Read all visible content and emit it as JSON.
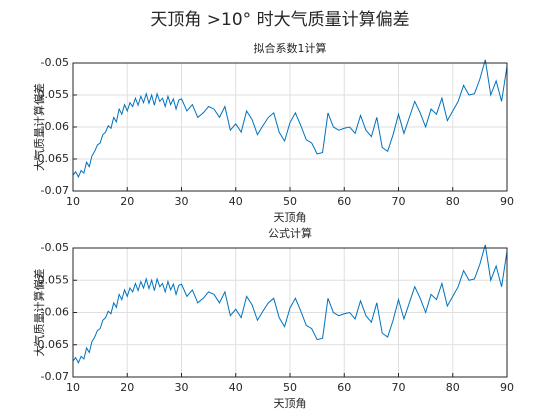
{
  "title": "天顶角 >10° 时大气质量计算偏差",
  "chart_data": [
    {
      "type": "line",
      "title": "拟合系数1计算",
      "xlabel": "天顶角",
      "ylabel": "大气质量计算偏差",
      "color": "#0072bd",
      "grid": true,
      "xlim": [
        10,
        90
      ],
      "xticks": [
        10,
        20,
        30,
        40,
        50,
        60,
        70,
        80,
        90
      ],
      "ylim": [
        -0.07,
        -0.05
      ],
      "yticks": [
        -0.05,
        -0.055,
        -0.06,
        -0.065,
        -0.07
      ],
      "x": [
        10,
        10.5,
        11,
        11.5,
        12,
        12.5,
        13,
        13.5,
        14,
        14.5,
        15,
        15.5,
        16,
        16.5,
        17,
        17.5,
        18,
        18.5,
        19,
        19.5,
        20,
        20.5,
        21,
        21.5,
        22,
        22.5,
        23,
        23.5,
        24,
        24.5,
        25,
        25.5,
        26,
        26.5,
        27,
        27.5,
        28,
        28.5,
        29,
        29.5,
        30,
        31,
        32,
        33,
        34,
        35,
        36,
        37,
        38,
        39,
        40,
        41,
        42,
        43,
        44,
        45,
        46,
        47,
        48,
        49,
        50,
        51,
        52,
        53,
        54,
        55,
        56,
        57,
        58,
        59,
        60,
        61,
        62,
        63,
        64,
        65,
        66,
        67,
        68,
        69,
        70,
        71,
        72,
        73,
        74,
        75,
        76,
        77,
        78,
        79,
        80,
        81,
        82,
        83,
        84,
        85,
        86,
        87,
        88,
        89,
        90
      ],
      "values": [
        -0.0675,
        -0.067,
        -0.0678,
        -0.0668,
        -0.0672,
        -0.0655,
        -0.0662,
        -0.0645,
        -0.0638,
        -0.0628,
        -0.0625,
        -0.0612,
        -0.0608,
        -0.0598,
        -0.0602,
        -0.0585,
        -0.0592,
        -0.0572,
        -0.058,
        -0.0565,
        -0.0575,
        -0.0562,
        -0.0568,
        -0.0555,
        -0.0566,
        -0.0552,
        -0.0562,
        -0.0548,
        -0.0563,
        -0.055,
        -0.0566,
        -0.0548,
        -0.056,
        -0.0555,
        -0.0568,
        -0.0552,
        -0.0565,
        -0.0556,
        -0.0572,
        -0.0558,
        -0.0556,
        -0.0575,
        -0.0565,
        -0.0585,
        -0.0578,
        -0.0568,
        -0.0572,
        -0.0585,
        -0.0568,
        -0.0605,
        -0.0595,
        -0.0608,
        -0.0575,
        -0.0588,
        -0.0612,
        -0.0598,
        -0.0585,
        -0.0578,
        -0.0608,
        -0.0622,
        -0.0593,
        -0.0578,
        -0.0598,
        -0.062,
        -0.0625,
        -0.0642,
        -0.064,
        -0.0578,
        -0.06,
        -0.0605,
        -0.0602,
        -0.06,
        -0.061,
        -0.0582,
        -0.0605,
        -0.0615,
        -0.0585,
        -0.0632,
        -0.0638,
        -0.0612,
        -0.058,
        -0.061,
        -0.0585,
        -0.056,
        -0.0578,
        -0.06,
        -0.0572,
        -0.058,
        -0.0555,
        -0.059,
        -0.0575,
        -0.056,
        -0.0535,
        -0.055,
        -0.0548,
        -0.0525,
        -0.0495,
        -0.055,
        -0.0528,
        -0.056,
        -0.0505
      ]
    },
    {
      "type": "line",
      "title": "公式计算",
      "xlabel": "天顶角",
      "ylabel": "大气质量计算偏差",
      "color": "#0072bd",
      "grid": true,
      "xlim": [
        10,
        90
      ],
      "xticks": [
        10,
        20,
        30,
        40,
        50,
        60,
        70,
        80,
        90
      ],
      "ylim": [
        -0.07,
        -0.05
      ],
      "yticks": [
        -0.05,
        -0.055,
        -0.06,
        -0.065,
        -0.07
      ],
      "x": [
        10,
        10.5,
        11,
        11.5,
        12,
        12.5,
        13,
        13.5,
        14,
        14.5,
        15,
        15.5,
        16,
        16.5,
        17,
        17.5,
        18,
        18.5,
        19,
        19.5,
        20,
        20.5,
        21,
        21.5,
        22,
        22.5,
        23,
        23.5,
        24,
        24.5,
        25,
        25.5,
        26,
        26.5,
        27,
        27.5,
        28,
        28.5,
        29,
        29.5,
        30,
        31,
        32,
        33,
        34,
        35,
        36,
        37,
        38,
        39,
        40,
        41,
        42,
        43,
        44,
        45,
        46,
        47,
        48,
        49,
        50,
        51,
        52,
        53,
        54,
        55,
        56,
        57,
        58,
        59,
        60,
        61,
        62,
        63,
        64,
        65,
        66,
        67,
        68,
        69,
        70,
        71,
        72,
        73,
        74,
        75,
        76,
        77,
        78,
        79,
        80,
        81,
        82,
        83,
        84,
        85,
        86,
        87,
        88,
        89,
        90
      ],
      "values": [
        -0.0675,
        -0.067,
        -0.0678,
        -0.0668,
        -0.0672,
        -0.0655,
        -0.0662,
        -0.0645,
        -0.0638,
        -0.0628,
        -0.0625,
        -0.0612,
        -0.0608,
        -0.0598,
        -0.0602,
        -0.0585,
        -0.0592,
        -0.0572,
        -0.058,
        -0.0565,
        -0.0575,
        -0.0562,
        -0.0568,
        -0.0555,
        -0.0566,
        -0.0552,
        -0.0562,
        -0.0548,
        -0.0563,
        -0.055,
        -0.0566,
        -0.0548,
        -0.056,
        -0.0555,
        -0.0568,
        -0.0552,
        -0.0565,
        -0.0556,
        -0.0572,
        -0.0558,
        -0.0556,
        -0.0575,
        -0.0565,
        -0.0585,
        -0.0578,
        -0.0568,
        -0.0572,
        -0.0585,
        -0.0568,
        -0.0605,
        -0.0595,
        -0.0608,
        -0.0575,
        -0.0588,
        -0.0612,
        -0.0598,
        -0.0585,
        -0.0578,
        -0.0608,
        -0.0622,
        -0.0593,
        -0.0578,
        -0.0598,
        -0.062,
        -0.0625,
        -0.0642,
        -0.064,
        -0.0578,
        -0.06,
        -0.0605,
        -0.0602,
        -0.06,
        -0.061,
        -0.0582,
        -0.0605,
        -0.0615,
        -0.0585,
        -0.0632,
        -0.0638,
        -0.0612,
        -0.058,
        -0.061,
        -0.0585,
        -0.056,
        -0.0578,
        -0.06,
        -0.0572,
        -0.058,
        -0.0555,
        -0.059,
        -0.0575,
        -0.056,
        -0.0535,
        -0.055,
        -0.0548,
        -0.0525,
        -0.0495,
        -0.055,
        -0.0528,
        -0.056,
        -0.0505
      ]
    }
  ]
}
